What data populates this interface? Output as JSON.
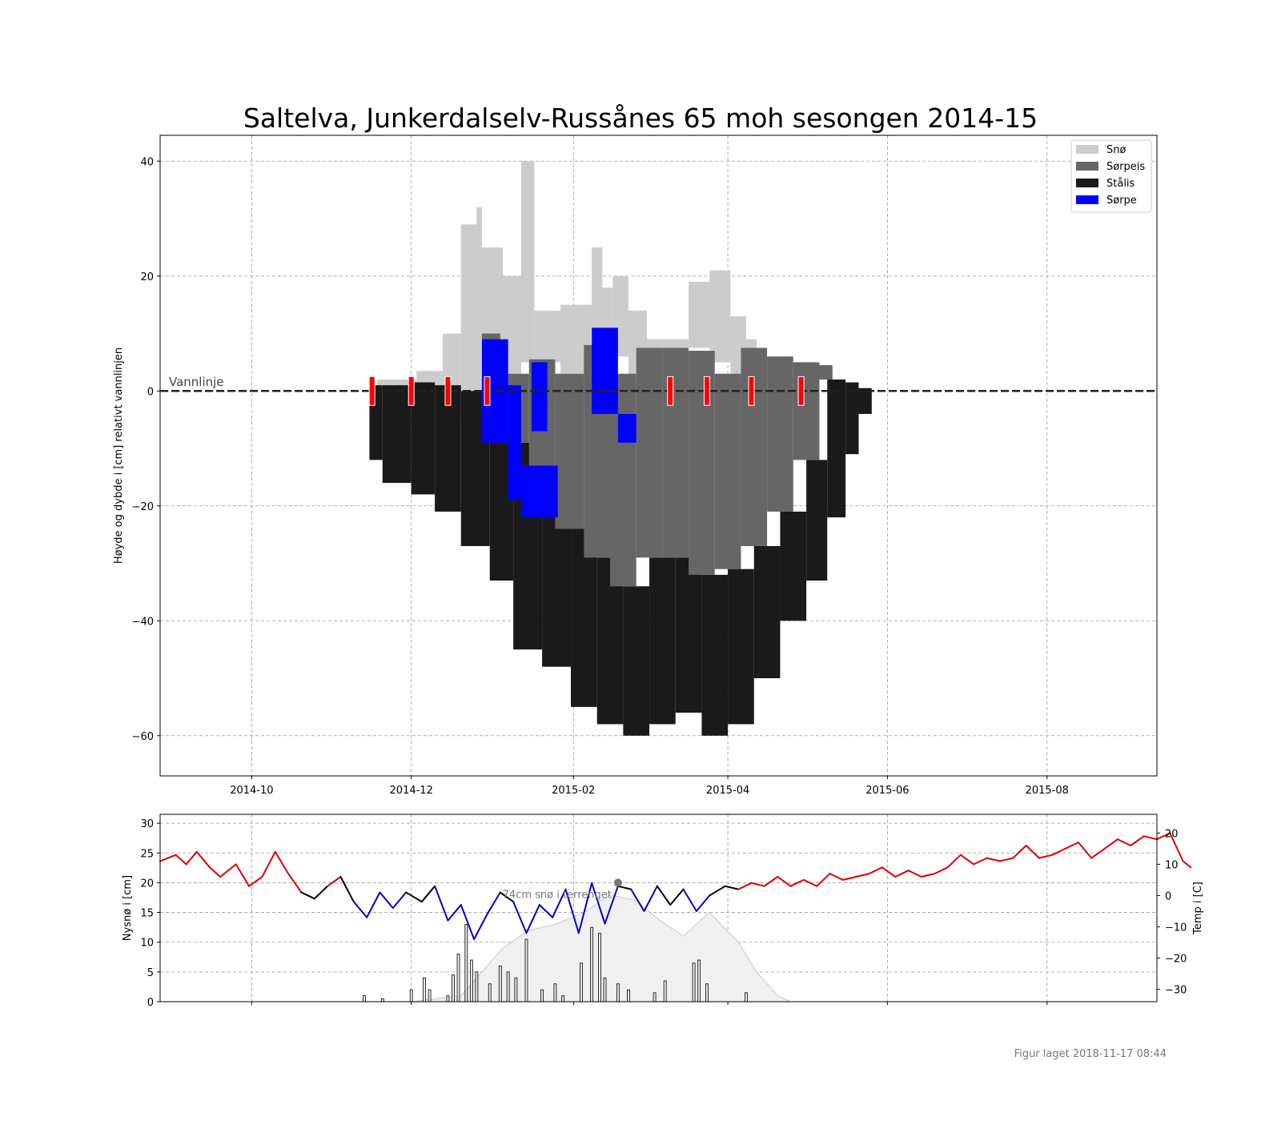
{
  "title": "Saltelva, Junkerdalselv-Russånes 65 moh sesongen 2014-15",
  "footer": "Figur laget 2018-11-17 08:44",
  "colors": {
    "snow": "#cccccc",
    "slush_ice": "#666666",
    "black_ice": "#1a1a1a",
    "slush": "#0000ff",
    "marker": "#ff0000",
    "temp_warm": "#dd0000",
    "temp_cold": "#0000cc",
    "temp_mid": "#000000",
    "snow_fill": "#f0f0f0"
  },
  "chart_data": [
    {
      "type": "area",
      "ylabel": "Høyde og dybde i [cm] relativt vannlinjen",
      "ylim": [
        -67,
        44.5
      ],
      "yticks": [
        40,
        20,
        0,
        -20,
        -40,
        -60
      ],
      "xlim": [
        "2014-08-27",
        "2015-09-12"
      ],
      "xticks": [
        "2014-10",
        "2014-12",
        "2015-02",
        "2015-04",
        "2015-06",
        "2015-08"
      ],
      "grid": true,
      "waterline_label": "Vannlinje",
      "legend": {
        "placement": "top-right",
        "entries": [
          {
            "label": "Snø",
            "color_key": "snow"
          },
          {
            "label": "Sørpeis",
            "color_key": "slush_ice"
          },
          {
            "label": "Stålis",
            "color_key": "black_ice"
          },
          {
            "label": "Sørpe",
            "color_key": "slush"
          }
        ]
      },
      "black_ice_layers": [
        {
          "from": "2014-11-15",
          "to": "2014-11-20",
          "top": 1,
          "bottom": -12
        },
        {
          "from": "2014-11-20",
          "to": "2014-12-01",
          "top": 1,
          "bottom": -16
        },
        {
          "from": "2014-12-01",
          "to": "2014-12-10",
          "top": 1.5,
          "bottom": -18
        },
        {
          "from": "2014-12-10",
          "to": "2014-12-20",
          "top": 1,
          "bottom": -21
        },
        {
          "from": "2014-12-20",
          "to": "2014-12-31",
          "top": 0,
          "bottom": -27
        },
        {
          "from": "2014-12-31",
          "to": "2015-01-09",
          "top": -2,
          "bottom": -33
        },
        {
          "from": "2015-01-09",
          "to": "2015-01-20",
          "top": -9,
          "bottom": -45
        },
        {
          "from": "2015-01-20",
          "to": "2015-01-31",
          "top": -16,
          "bottom": -48
        },
        {
          "from": "2015-01-31",
          "to": "2015-02-10",
          "top": -24,
          "bottom": -55
        },
        {
          "from": "2015-02-10",
          "to": "2015-02-20",
          "top": -29,
          "bottom": -58
        },
        {
          "from": "2015-02-20",
          "to": "2015-03-02",
          "top": -34,
          "bottom": -60
        },
        {
          "from": "2015-03-02",
          "to": "2015-03-12",
          "top": -29,
          "bottom": -58
        },
        {
          "from": "2015-03-12",
          "to": "2015-03-22",
          "top": -29,
          "bottom": -56
        },
        {
          "from": "2015-03-22",
          "to": "2015-04-01",
          "top": -32,
          "bottom": -60
        },
        {
          "from": "2015-04-01",
          "to": "2015-04-11",
          "top": -31,
          "bottom": -58
        },
        {
          "from": "2015-04-11",
          "to": "2015-04-21",
          "top": -27,
          "bottom": -50
        },
        {
          "from": "2015-04-21",
          "to": "2015-05-01",
          "top": -21,
          "bottom": -40
        },
        {
          "from": "2015-05-01",
          "to": "2015-05-09",
          "top": -12,
          "bottom": -33
        },
        {
          "from": "2015-05-09",
          "to": "2015-05-16",
          "top": 2,
          "bottom": -22
        },
        {
          "from": "2015-05-16",
          "to": "2015-05-21",
          "top": 1.5,
          "bottom": -11
        },
        {
          "from": "2015-05-21",
          "to": "2015-05-26",
          "top": 0.5,
          "bottom": -4
        }
      ],
      "slush_ice_layers": [
        {
          "from": "2014-12-28",
          "to": "2015-01-04",
          "top": 10,
          "bottom": -4
        },
        {
          "from": "2015-01-04",
          "to": "2015-01-15",
          "top": 3,
          "bottom": -9
        },
        {
          "from": "2015-01-15",
          "to": "2015-01-25",
          "top": 5.5,
          "bottom": -16
        },
        {
          "from": "2015-01-25",
          "to": "2015-02-05",
          "top": 3,
          "bottom": -24
        },
        {
          "from": "2015-02-05",
          "to": "2015-02-15",
          "top": 8,
          "bottom": -29
        },
        {
          "from": "2015-02-15",
          "to": "2015-02-25",
          "top": 3,
          "bottom": -34
        },
        {
          "from": "2015-02-25",
          "to": "2015-03-07",
          "top": 7.5,
          "bottom": -29
        },
        {
          "from": "2015-03-07",
          "to": "2015-03-17",
          "top": 7.5,
          "bottom": -29
        },
        {
          "from": "2015-03-17",
          "to": "2015-03-27",
          "top": 7,
          "bottom": -32
        },
        {
          "from": "2015-03-27",
          "to": "2015-04-06",
          "top": 3,
          "bottom": -31
        },
        {
          "from": "2015-04-06",
          "to": "2015-04-16",
          "top": 7.5,
          "bottom": -27
        },
        {
          "from": "2015-04-16",
          "to": "2015-04-26",
          "top": 6,
          "bottom": -21
        },
        {
          "from": "2015-04-26",
          "to": "2015-05-06",
          "top": 5,
          "bottom": -12
        },
        {
          "from": "2015-05-06",
          "to": "2015-05-11",
          "top": 4.5,
          "bottom": 2
        }
      ],
      "slush_layers": [
        {
          "from": "2014-12-28",
          "to": "2015-01-07",
          "top": 9,
          "bottom": -9
        },
        {
          "from": "2015-01-07",
          "to": "2015-01-12",
          "top": 1,
          "bottom": -19
        },
        {
          "from": "2015-01-12",
          "to": "2015-01-26",
          "top": -13,
          "bottom": -22
        },
        {
          "from": "2015-01-16",
          "to": "2015-01-22",
          "top": 5,
          "bottom": -7
        },
        {
          "from": "2015-02-08",
          "to": "2015-02-18",
          "top": 11,
          "bottom": -4
        },
        {
          "from": "2015-02-18",
          "to": "2015-02-25",
          "top": -4,
          "bottom": -9
        }
      ],
      "snow_layers": [
        {
          "from": "2014-11-18",
          "to": "2014-12-03",
          "top": 2,
          "bottom": 1
        },
        {
          "from": "2014-12-03",
          "to": "2014-12-13",
          "top": 3.5,
          "bottom": 1
        },
        {
          "from": "2014-12-13",
          "to": "2014-12-20",
          "top": 10,
          "bottom": 0
        },
        {
          "from": "2014-12-20",
          "to": "2014-12-26",
          "top": 29,
          "bottom": -5
        },
        {
          "from": "2014-12-26",
          "to": "2014-12-28",
          "top": 32,
          "bottom": -9
        },
        {
          "from": "2014-12-28",
          "to": "2015-01-05",
          "top": 25,
          "bottom": 9
        },
        {
          "from": "2015-01-05",
          "to": "2015-01-12",
          "top": 20,
          "bottom": 3
        },
        {
          "from": "2015-01-12",
          "to": "2015-01-17",
          "top": 40,
          "bottom": 5
        },
        {
          "from": "2015-01-17",
          "to": "2015-01-27",
          "top": 14,
          "bottom": 5
        },
        {
          "from": "2015-01-27",
          "to": "2015-02-08",
          "top": 15,
          "bottom": 3
        },
        {
          "from": "2015-02-08",
          "to": "2015-02-12",
          "top": 25,
          "bottom": 8
        },
        {
          "from": "2015-02-12",
          "to": "2015-02-16",
          "top": 18,
          "bottom": 3
        },
        {
          "from": "2015-02-16",
          "to": "2015-02-22",
          "top": 20,
          "bottom": 6
        },
        {
          "from": "2015-02-22",
          "to": "2015-03-01",
          "top": 14,
          "bottom": 3
        },
        {
          "from": "2015-03-01",
          "to": "2015-03-17",
          "top": 9,
          "bottom": 7.5
        },
        {
          "from": "2015-03-17",
          "to": "2015-03-25",
          "top": 19,
          "bottom": 7.5
        },
        {
          "from": "2015-03-25",
          "to": "2015-04-02",
          "top": 21,
          "bottom": 5
        },
        {
          "from": "2015-04-02",
          "to": "2015-04-08",
          "top": 13,
          "bottom": 3
        },
        {
          "from": "2015-04-08",
          "to": "2015-04-12",
          "top": 9,
          "bottom": 7.5
        }
      ],
      "observation_markers": [
        "2014-11-16",
        "2014-12-01",
        "2014-12-15",
        "2014-12-30",
        "2015-03-10",
        "2015-03-24",
        "2015-04-10",
        "2015-04-29"
      ]
    },
    {
      "type": "bar",
      "ylabel": "Nysnø i [cm]",
      "ylabel_right": "Temp i [C]",
      "ylim": [
        0,
        31.5
      ],
      "yticks": [
        0,
        5,
        10,
        15,
        20,
        25,
        30
      ],
      "y2lim": [
        -34,
        26
      ],
      "y2ticks": [
        20,
        10,
        0,
        -10,
        -20,
        -30
      ],
      "grid": true,
      "annotation": "74cm snø i terrenget",
      "annotation_point": {
        "date": "2015-02-18",
        "value": 20
      },
      "terrain_snow_depth": [
        {
          "date": "2014-12-01",
          "value": 0
        },
        {
          "date": "2014-12-20",
          "value": 1
        },
        {
          "date": "2014-12-30",
          "value": 6
        },
        {
          "date": "2015-01-05",
          "value": 9
        },
        {
          "date": "2015-01-15",
          "value": 12
        },
        {
          "date": "2015-01-25",
          "value": 13
        },
        {
          "date": "2015-02-05",
          "value": 15
        },
        {
          "date": "2015-02-15",
          "value": 18
        },
        {
          "date": "2015-02-25",
          "value": 17
        },
        {
          "date": "2015-03-05",
          "value": 14
        },
        {
          "date": "2015-03-15",
          "value": 11
        },
        {
          "date": "2015-03-25",
          "value": 15
        },
        {
          "date": "2015-04-05",
          "value": 10
        },
        {
          "date": "2015-04-12",
          "value": 5
        },
        {
          "date": "2015-04-20",
          "value": 1
        },
        {
          "date": "2015-04-25",
          "value": 0
        }
      ],
      "new_snow": [
        {
          "date": "2014-11-13",
          "value": 1
        },
        {
          "date": "2014-11-20",
          "value": 0.5
        },
        {
          "date": "2014-12-01",
          "value": 2
        },
        {
          "date": "2014-12-06",
          "value": 4
        },
        {
          "date": "2014-12-08",
          "value": 2
        },
        {
          "date": "2014-12-15",
          "value": 1
        },
        {
          "date": "2014-12-17",
          "value": 4.5
        },
        {
          "date": "2014-12-19",
          "value": 8
        },
        {
          "date": "2014-12-22",
          "value": 13
        },
        {
          "date": "2014-12-24",
          "value": 7
        },
        {
          "date": "2014-12-26",
          "value": 5
        },
        {
          "date": "2014-12-31",
          "value": 3
        },
        {
          "date": "2015-01-04",
          "value": 6
        },
        {
          "date": "2015-01-07",
          "value": 5
        },
        {
          "date": "2015-01-10",
          "value": 4
        },
        {
          "date": "2015-01-14",
          "value": 10.5
        },
        {
          "date": "2015-01-20",
          "value": 2
        },
        {
          "date": "2015-01-25",
          "value": 3
        },
        {
          "date": "2015-01-28",
          "value": 1
        },
        {
          "date": "2015-02-04",
          "value": 6.5
        },
        {
          "date": "2015-02-08",
          "value": 12.5
        },
        {
          "date": "2015-02-11",
          "value": 11.5
        },
        {
          "date": "2015-02-13",
          "value": 4
        },
        {
          "date": "2015-02-18",
          "value": 3
        },
        {
          "date": "2015-02-22",
          "value": 2
        },
        {
          "date": "2015-03-04",
          "value": 1.5
        },
        {
          "date": "2015-03-08",
          "value": 3.5
        },
        {
          "date": "2015-03-19",
          "value": 6.5
        },
        {
          "date": "2015-03-21",
          "value": 7
        },
        {
          "date": "2015-03-24",
          "value": 3
        },
        {
          "date": "2015-04-08",
          "value": 1.5
        }
      ],
      "temperature": [
        {
          "date": "2014-08-27",
          "value": 11
        },
        {
          "date": "2014-09-02",
          "value": 13
        },
        {
          "date": "2014-09-06",
          "value": 10
        },
        {
          "date": "2014-09-10",
          "value": 14
        },
        {
          "date": "2014-09-15",
          "value": 9
        },
        {
          "date": "2014-09-19",
          "value": 6
        },
        {
          "date": "2014-09-25",
          "value": 10
        },
        {
          "date": "2014-09-30",
          "value": 3
        },
        {
          "date": "2014-10-05",
          "value": 6
        },
        {
          "date": "2014-10-10",
          "value": 14
        },
        {
          "date": "2014-10-15",
          "value": 7
        },
        {
          "date": "2014-10-20",
          "value": 1
        },
        {
          "date": "2014-10-25",
          "value": -1
        },
        {
          "date": "2014-10-30",
          "value": 3
        },
        {
          "date": "2014-11-04",
          "value": 6
        },
        {
          "date": "2014-11-09",
          "value": -2
        },
        {
          "date": "2014-11-14",
          "value": -7
        },
        {
          "date": "2014-11-19",
          "value": 1
        },
        {
          "date": "2014-11-24",
          "value": -4
        },
        {
          "date": "2014-11-29",
          "value": 1
        },
        {
          "date": "2014-12-05",
          "value": -2
        },
        {
          "date": "2014-12-10",
          "value": 3
        },
        {
          "date": "2014-12-15",
          "value": -8
        },
        {
          "date": "2014-12-20",
          "value": -3
        },
        {
          "date": "2014-12-25",
          "value": -14
        },
        {
          "date": "2014-12-30",
          "value": -6
        },
        {
          "date": "2015-01-04",
          "value": 1
        },
        {
          "date": "2015-01-09",
          "value": -2
        },
        {
          "date": "2015-01-14",
          "value": -12
        },
        {
          "date": "2015-01-19",
          "value": -3
        },
        {
          "date": "2015-01-24",
          "value": -7
        },
        {
          "date": "2015-01-29",
          "value": 2
        },
        {
          "date": "2015-02-03",
          "value": -12
        },
        {
          "date": "2015-02-08",
          "value": 4
        },
        {
          "date": "2015-02-13",
          "value": -9
        },
        {
          "date": "2015-02-18",
          "value": 3
        },
        {
          "date": "2015-02-23",
          "value": 2
        },
        {
          "date": "2015-02-28",
          "value": -5
        },
        {
          "date": "2015-03-05",
          "value": 3
        },
        {
          "date": "2015-03-10",
          "value": -3
        },
        {
          "date": "2015-03-15",
          "value": 2
        },
        {
          "date": "2015-03-20",
          "value": -5
        },
        {
          "date": "2015-03-25",
          "value": 0
        },
        {
          "date": "2015-03-31",
          "value": 3
        },
        {
          "date": "2015-04-05",
          "value": 2
        },
        {
          "date": "2015-04-10",
          "value": 4
        },
        {
          "date": "2015-04-15",
          "value": 3
        },
        {
          "date": "2015-04-20",
          "value": 6
        },
        {
          "date": "2015-04-25",
          "value": 3
        },
        {
          "date": "2015-04-30",
          "value": 5
        },
        {
          "date": "2015-05-05",
          "value": 3
        },
        {
          "date": "2015-05-10",
          "value": 7
        },
        {
          "date": "2015-05-15",
          "value": 5
        },
        {
          "date": "2015-05-20",
          "value": 6
        },
        {
          "date": "2015-05-25",
          "value": 7
        },
        {
          "date": "2015-05-30",
          "value": 9
        },
        {
          "date": "2015-06-04",
          "value": 6
        },
        {
          "date": "2015-06-09",
          "value": 8
        },
        {
          "date": "2015-06-14",
          "value": 6
        },
        {
          "date": "2015-06-19",
          "value": 7
        },
        {
          "date": "2015-06-24",
          "value": 9
        },
        {
          "date": "2015-06-29",
          "value": 13
        },
        {
          "date": "2015-07-04",
          "value": 10
        },
        {
          "date": "2015-07-09",
          "value": 12
        },
        {
          "date": "2015-07-14",
          "value": 11
        },
        {
          "date": "2015-07-19",
          "value": 12
        },
        {
          "date": "2015-07-24",
          "value": 16
        },
        {
          "date": "2015-07-29",
          "value": 12
        },
        {
          "date": "2015-08-03",
          "value": 13
        },
        {
          "date": "2015-08-08",
          "value": 15
        },
        {
          "date": "2015-08-13",
          "value": 17
        },
        {
          "date": "2015-08-18",
          "value": 12
        },
        {
          "date": "2015-08-23",
          "value": 15
        },
        {
          "date": "2015-08-28",
          "value": 18
        },
        {
          "date": "2015-09-02",
          "value": 16
        },
        {
          "date": "2015-09-07",
          "value": 19
        },
        {
          "date": "2015-09-12",
          "value": 18
        },
        {
          "date": "2015-09-17",
          "value": 20
        },
        {
          "date": "2015-09-22",
          "value": 11
        },
        {
          "date": "2015-09-25",
          "value": 9
        }
      ]
    }
  ]
}
